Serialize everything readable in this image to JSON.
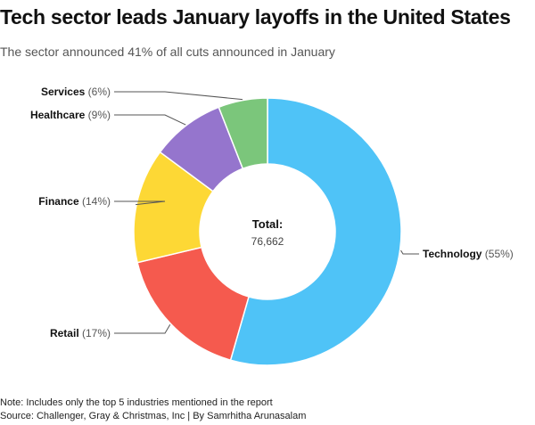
{
  "title": "Tech sector leads January layoffs in the United States",
  "subtitle": "The sector announced 41% of all cuts announced in January",
  "chart_data": {
    "type": "pie",
    "style": "donut",
    "title": "Tech sector leads January layoffs in the United States",
    "subtitle": "The sector announced 41% of all cuts announced in January",
    "center_label": "Total:",
    "center_value": "76,662",
    "slices": [
      {
        "name": "Technology",
        "pct_label": "(55%)",
        "value": 55,
        "color": "#4fc3f7"
      },
      {
        "name": "Retail",
        "pct_label": "(17%)",
        "value": 17,
        "color": "#f55a4e"
      },
      {
        "name": "Finance",
        "pct_label": "(14%)",
        "value": 14,
        "color": "#fdd835"
      },
      {
        "name": "Healthcare",
        "pct_label": "(9%)",
        "value": 9,
        "color": "#9575cd"
      },
      {
        "name": "Services",
        "pct_label": "(6%)",
        "value": 6,
        "color": "#7bc67b"
      }
    ]
  },
  "footer": {
    "note": "Note: Includes only the top 5 industries mentioned in the report",
    "source": "Source: Challenger, Gray & Christmas, Inc | By Samrhitha Arunasalam"
  }
}
